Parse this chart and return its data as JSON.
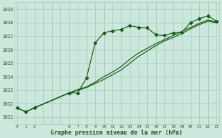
{
  "xlabel": "Graphe pression niveau de la mer (hPa)",
  "background_color": "#cce8dd",
  "grid_color": "#aacfbf",
  "line_color": "#1a5c1a",
  "ylim": [
    1010.5,
    1019.5
  ],
  "xlim": [
    -0.3,
    23.3
  ],
  "yticks": [
    1011,
    1012,
    1013,
    1014,
    1015,
    1016,
    1017,
    1018,
    1019
  ],
  "xtick_positions": [
    0,
    1,
    2,
    3,
    4,
    5,
    6,
    7,
    8,
    9,
    10,
    11,
    12,
    13,
    14,
    15,
    16,
    17,
    18,
    19,
    20,
    21,
    22,
    23
  ],
  "xtick_labels": [
    "0",
    "1",
    "2",
    "",
    "",
    "",
    "6",
    "7",
    "8",
    "9",
    "10",
    "11",
    "12",
    "13",
    "14",
    "15",
    "16",
    "17",
    "18",
    "19",
    "20",
    "21",
    "22",
    "23"
  ],
  "series1_x": [
    0,
    1,
    2,
    6,
    7,
    8,
    9,
    10,
    11,
    12,
    13,
    14,
    15,
    16,
    17,
    18,
    19,
    20,
    21,
    22,
    23
  ],
  "series1_y": [
    1011.7,
    1011.4,
    1011.7,
    1012.8,
    1012.8,
    1013.9,
    1016.5,
    1017.25,
    1017.4,
    1017.5,
    1017.78,
    1017.65,
    1017.62,
    1017.1,
    1017.05,
    1017.25,
    1017.3,
    1018.0,
    1018.3,
    1018.5,
    1018.1
  ],
  "series2_x": [
    0,
    1,
    2,
    6,
    7,
    8,
    9,
    10,
    11,
    12,
    13,
    14,
    15,
    16,
    17,
    18,
    19,
    20,
    21,
    22,
    23
  ],
  "series2_y": [
    1011.7,
    1011.4,
    1011.7,
    1012.8,
    1013.0,
    1013.2,
    1013.5,
    1013.8,
    1014.15,
    1014.5,
    1015.0,
    1015.5,
    1015.9,
    1016.3,
    1016.65,
    1016.9,
    1017.2,
    1017.55,
    1017.85,
    1018.1,
    1018.0
  ],
  "series3_x": [
    0,
    1,
    2,
    6,
    7,
    8,
    9,
    10,
    11,
    12,
    13,
    14,
    15,
    16,
    17,
    18,
    19,
    20,
    21,
    22,
    23
  ],
  "series3_y": [
    1011.7,
    1011.4,
    1011.7,
    1012.8,
    1013.05,
    1013.25,
    1013.6,
    1014.0,
    1014.35,
    1014.75,
    1015.3,
    1015.75,
    1016.1,
    1016.45,
    1016.75,
    1017.05,
    1017.35,
    1017.65,
    1017.95,
    1018.2,
    1018.05
  ]
}
